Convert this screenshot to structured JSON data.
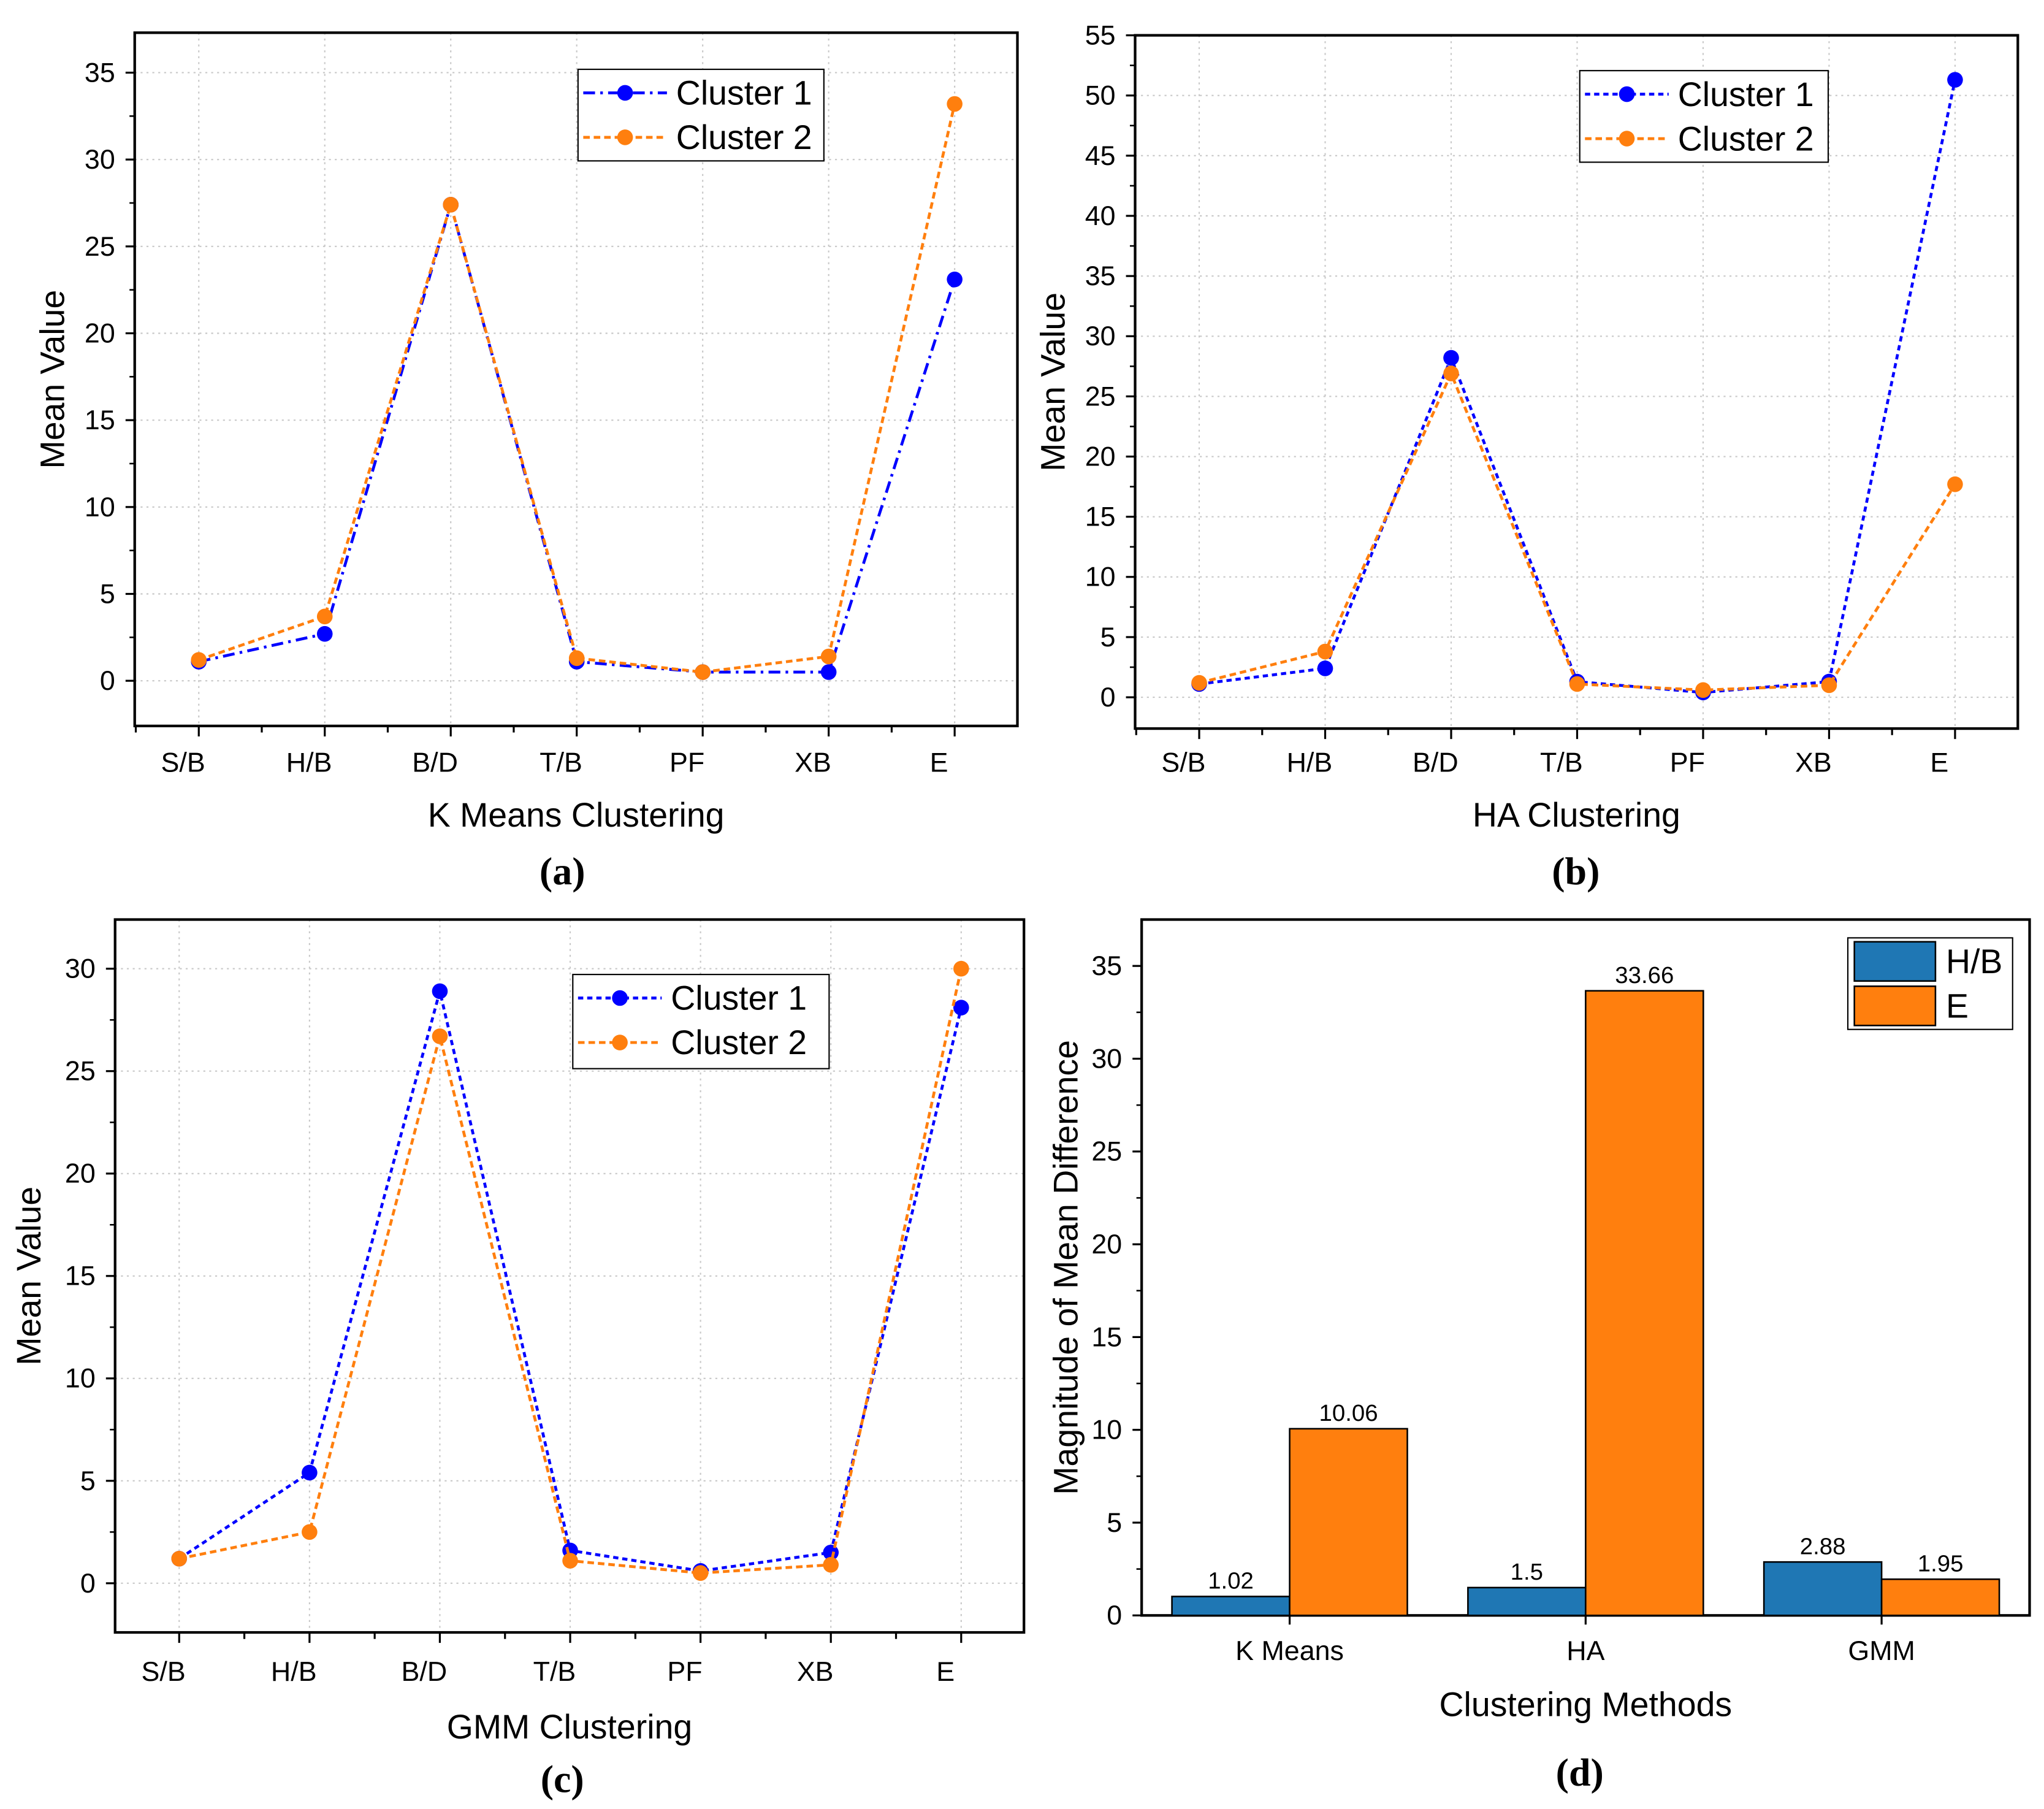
{
  "chart_data": [
    {
      "type": "line",
      "panel_label": "(a)",
      "xlabel": "K Means Clustering",
      "ylabel": "Mean Value",
      "categories": [
        "S/B",
        "H/B",
        "B/D",
        "T/B",
        "PF",
        "XB",
        "E"
      ],
      "ylim": [
        -2.6,
        37.3
      ],
      "yticks": [
        0,
        5,
        10,
        15,
        20,
        25,
        30,
        35
      ],
      "grid": true,
      "legend_position": "top-right",
      "series": [
        {
          "name": "Cluster 1",
          "color": "#0000ff",
          "dash": "dash-dot",
          "values": [
            1.1,
            2.7,
            27.4,
            1.1,
            0.5,
            0.5,
            23.1
          ]
        },
        {
          "name": "Cluster 2",
          "color": "#ff7f0e",
          "dash": "dash",
          "values": [
            1.2,
            3.7,
            27.4,
            1.3,
            0.5,
            1.4,
            33.2
          ]
        }
      ]
    },
    {
      "type": "line",
      "panel_label": "(b)",
      "xlabel": "HA Clustering",
      "ylabel": "Mean Value",
      "categories": [
        "S/B",
        "H/B",
        "B/D",
        "T/B",
        "PF",
        "XB",
        "E"
      ],
      "ylim": [
        -2.6,
        55
      ],
      "yticks": [
        0,
        5,
        10,
        15,
        20,
        25,
        30,
        35,
        40,
        45,
        50,
        55
      ],
      "grid": true,
      "legend_position": "top-right",
      "series": [
        {
          "name": "Cluster 1",
          "color": "#0000ff",
          "dash": "short-dash",
          "values": [
            1.1,
            2.4,
            28.2,
            1.3,
            0.4,
            1.3,
            51.3
          ]
        },
        {
          "name": "Cluster 2",
          "color": "#ff7f0e",
          "dash": "dash",
          "values": [
            1.2,
            3.8,
            26.9,
            1.1,
            0.6,
            1.0,
            17.7
          ]
        }
      ]
    },
    {
      "type": "line",
      "panel_label": "(c)",
      "xlabel": "GMM Clustering",
      "ylabel": "Mean Value",
      "categories": [
        "S/B",
        "H/B",
        "B/D",
        "T/B",
        "PF",
        "XB",
        "E"
      ],
      "ylim": [
        -2.4,
        32.4
      ],
      "yticks": [
        0,
        5,
        10,
        15,
        20,
        25,
        30
      ],
      "grid": true,
      "legend_position": "top-right",
      "series": [
        {
          "name": "Cluster 1",
          "color": "#0000ff",
          "dash": "short-dash",
          "values": [
            1.2,
            5.4,
            28.9,
            1.6,
            0.6,
            1.5,
            28.1
          ]
        },
        {
          "name": "Cluster 2",
          "color": "#ff7f0e",
          "dash": "dash",
          "values": [
            1.2,
            2.5,
            26.7,
            1.1,
            0.5,
            0.9,
            30.0
          ]
        }
      ]
    },
    {
      "type": "bar",
      "panel_label": "(d)",
      "xlabel": "Clustering Methods",
      "ylabel": "Magnitude of Mean Difference",
      "categories": [
        "K Means",
        "HA",
        "GMM"
      ],
      "ylim": [
        0,
        37.5
      ],
      "yticks": [
        0,
        5,
        10,
        15,
        20,
        25,
        30,
        35
      ],
      "grid": false,
      "legend_position": "top-right",
      "series": [
        {
          "name": "H/B",
          "color": "#1f77b4",
          "values": [
            1.02,
            1.5,
            2.88
          ],
          "labels": [
            "1.02",
            "1.5",
            "2.88"
          ]
        },
        {
          "name": "E",
          "color": "#ff7f0e",
          "values": [
            10.06,
            33.66,
            1.95
          ],
          "labels": [
            "10.06",
            "33.66",
            "1.95"
          ]
        }
      ]
    }
  ]
}
